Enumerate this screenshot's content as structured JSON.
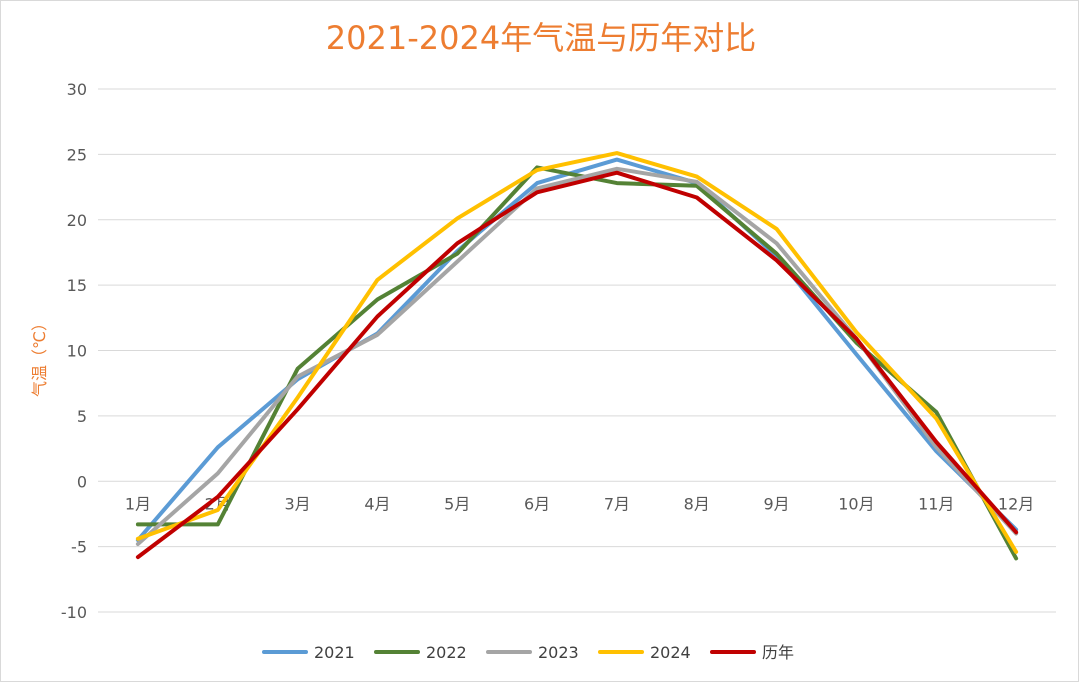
{
  "chart_data": {
    "type": "line",
    "title": "2021-2024年气温与历年对比",
    "xlabel": "",
    "ylabel": "气温（℃）",
    "categories": [
      "1月",
      "2月",
      "3月",
      "4月",
      "5月",
      "6月",
      "7月",
      "8月",
      "9月",
      "10月",
      "11月",
      "12月"
    ],
    "ylim": [
      -10,
      30
    ],
    "yticks": [
      -10,
      -5,
      0,
      5,
      10,
      15,
      20,
      25,
      30
    ],
    "grid": true,
    "legend_position": "bottom",
    "series": [
      {
        "name": "2021",
        "color": "#5B9BD5",
        "values": [
          -4.5,
          2.6,
          7.8,
          11.3,
          17.6,
          22.8,
          24.6,
          22.8,
          17.2,
          9.7,
          2.3,
          -3.7
        ]
      },
      {
        "name": "2022",
        "color": "#548235",
        "values": [
          -3.3,
          -3.3,
          8.6,
          13.9,
          17.4,
          24.0,
          22.8,
          22.6,
          17.4,
          10.6,
          5.3,
          -5.9
        ]
      },
      {
        "name": "2023",
        "color": "#A5A5A5",
        "values": [
          -4.8,
          0.6,
          8.0,
          11.2,
          16.8,
          22.4,
          23.9,
          22.9,
          18.2,
          10.9,
          2.6,
          -4.0
        ]
      },
      {
        "name": "2024",
        "color": "#FFC000",
        "values": [
          -4.4,
          -2.2,
          6.4,
          15.4,
          20.1,
          23.8,
          25.1,
          23.3,
          19.3,
          11.4,
          4.8,
          -5.4
        ]
      },
      {
        "name": "历年",
        "color": "#C00000",
        "values": [
          -5.8,
          -1.2,
          5.5,
          12.6,
          18.2,
          22.1,
          23.6,
          21.7,
          16.9,
          10.9,
          3.0,
          -3.9
        ]
      }
    ]
  }
}
